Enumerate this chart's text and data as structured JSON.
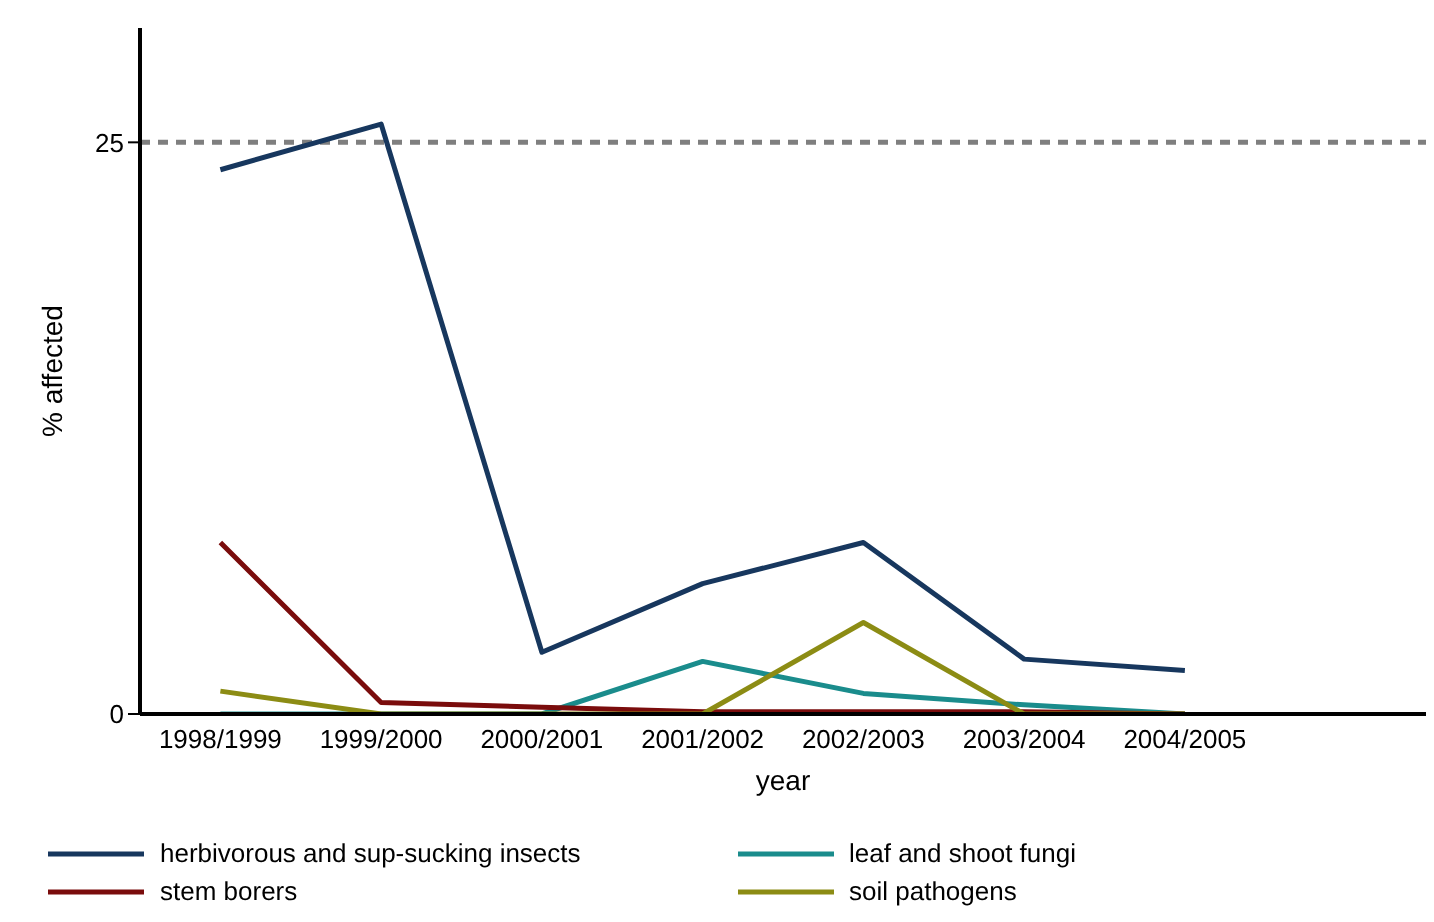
{
  "chart_data": {
    "type": "line",
    "xlabel": "year",
    "ylabel": "% affected",
    "categories": [
      "1998/1999",
      "1999/2000",
      "2000/2001",
      "2001/2002",
      "2002/2003",
      "2003/2004",
      "2004/2005"
    ],
    "series": [
      {
        "name": "herbivorous and sup-sucking insects",
        "color": "#17375e",
        "values": [
          23.8,
          25.8,
          2.7,
          5.7,
          7.5,
          2.4,
          1.9
        ]
      },
      {
        "name": "leaf and shoot fungi",
        "color": "#1a8c8c",
        "values": [
          0,
          0,
          0,
          2.3,
          0.9,
          0.4,
          0
        ]
      },
      {
        "name": "stem borers",
        "color": "#7a0c0c",
        "values": [
          7.5,
          0.5,
          0.3,
          0.1,
          0.1,
          0.1,
          0
        ]
      },
      {
        "name": "soil pathogens",
        "color": "#8c8c14",
        "values": [
          1.0,
          0,
          0,
          0,
          4.0,
          0,
          0
        ]
      }
    ],
    "ylim": [
      0,
      30
    ],
    "yticks": [
      0,
      25
    ],
    "grid": false,
    "legend": "bottom",
    "marker": "none",
    "line_style": "solid",
    "ref_lines": [
      {
        "axis": "y",
        "value": 25,
        "color": "#7f7f7f",
        "line_style": "dashed"
      }
    ]
  }
}
